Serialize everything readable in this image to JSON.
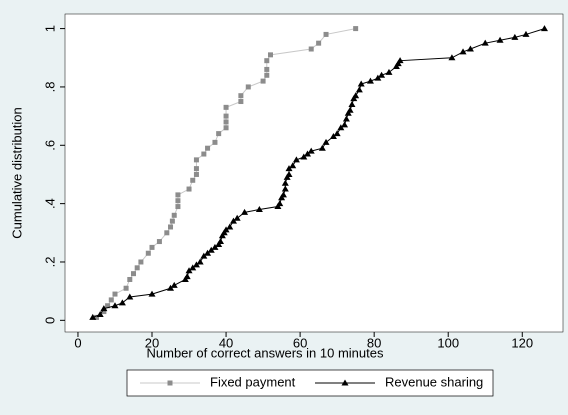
{
  "chart_data": {
    "type": "line",
    "xlabel": "Number of correct answers in 10 minutes",
    "ylabel": "Cumulative distribution",
    "xlim": [
      -3.5,
      131
    ],
    "ylim": [
      -0.04,
      1.05
    ],
    "xticks": [
      0,
      20,
      40,
      60,
      80,
      100,
      120
    ],
    "yticks": [
      0,
      {
        "value": 0.2,
        "label": ".2"
      },
      {
        "value": 0.4,
        "label": ".4"
      },
      {
        "value": 0.6,
        "label": ".6"
      },
      {
        "value": 0.8,
        "label": ".8"
      },
      1
    ],
    "legend": "bottom",
    "series": [
      {
        "name": "Fixed payment",
        "color": "#8c8c8c",
        "line_color": "#c8c8c8",
        "marker": "square",
        "x": [
          5,
          7,
          8,
          9,
          10,
          13,
          14,
          15,
          16,
          17,
          19,
          20,
          22,
          24,
          25,
          25.5,
          26,
          27,
          27,
          27,
          30,
          31,
          32,
          32,
          32,
          34,
          35,
          37,
          38,
          40,
          40,
          40,
          40,
          44,
          44,
          46,
          50,
          51,
          51,
          51,
          52,
          63,
          65,
          67,
          75
        ],
        "values": [
          0.01,
          0.03,
          0.05,
          0.07,
          0.09,
          0.11,
          0.14,
          0.16,
          0.18,
          0.2,
          0.23,
          0.25,
          0.27,
          0.3,
          0.32,
          0.34,
          0.36,
          0.39,
          0.41,
          0.43,
          0.45,
          0.48,
          0.5,
          0.52,
          0.55,
          0.57,
          0.59,
          0.61,
          0.64,
          0.66,
          0.68,
          0.7,
          0.73,
          0.75,
          0.77,
          0.8,
          0.82,
          0.84,
          0.86,
          0.89,
          0.91,
          0.93,
          0.95,
          0.98,
          1
        ]
      },
      {
        "name": "Revenue sharing",
        "color": "#000000",
        "line_color": "#000000",
        "marker": "triangle",
        "x": [
          4,
          6,
          7,
          10,
          12,
          14,
          20,
          25,
          26,
          29,
          29.5,
          30,
          31,
          32,
          33,
          34,
          35,
          36,
          37,
          38,
          38.5,
          39,
          39.5,
          40,
          41,
          42,
          43,
          45,
          49,
          54,
          54.5,
          55,
          55.5,
          56,
          56,
          56.5,
          57,
          57,
          58,
          59,
          61,
          62,
          63,
          66,
          67,
          69,
          70,
          71,
          72,
          72.5,
          73,
          73.5,
          74,
          74.5,
          75,
          76,
          76.5,
          79,
          81,
          82,
          84,
          86,
          86.5,
          87,
          101,
          104,
          106,
          110,
          114,
          118,
          121,
          126
        ],
        "values": [
          0.01,
          0.02,
          0.04,
          0.05,
          0.06,
          0.08,
          0.09,
          0.11,
          0.12,
          0.14,
          0.15,
          0.17,
          0.18,
          0.19,
          0.2,
          0.22,
          0.23,
          0.24,
          0.25,
          0.26,
          0.27,
          0.29,
          0.3,
          0.31,
          0.32,
          0.34,
          0.35,
          0.37,
          0.38,
          0.39,
          0.4,
          0.42,
          0.43,
          0.45,
          0.47,
          0.49,
          0.5,
          0.52,
          0.53,
          0.55,
          0.56,
          0.57,
          0.58,
          0.59,
          0.61,
          0.63,
          0.64,
          0.66,
          0.67,
          0.69,
          0.71,
          0.72,
          0.74,
          0.76,
          0.77,
          0.79,
          0.81,
          0.82,
          0.83,
          0.84,
          0.85,
          0.87,
          0.88,
          0.89,
          0.9,
          0.92,
          0.93,
          0.95,
          0.96,
          0.97,
          0.98,
          1
        ]
      }
    ]
  }
}
